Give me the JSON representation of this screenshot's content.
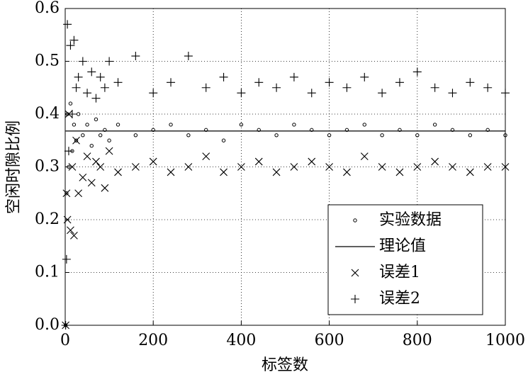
{
  "chart_data": {
    "type": "scatter",
    "x_label": "标签数",
    "y_label": "空闲时隙比例",
    "xlim": [
      0,
      1000
    ],
    "xticks": [
      0,
      200,
      400,
      600,
      800,
      1000
    ],
    "ylim": [
      0,
      0.6
    ],
    "yticks": [
      {
        "value": 0,
        "label": "0.0"
      },
      0.1,
      0.2,
      0.3,
      0.4,
      0.5,
      0.6
    ],
    "grid": true,
    "legend": "lower right",
    "series": [
      {
        "name": "实验数据",
        "marker": "circle",
        "color": "#000000",
        "x": [
          1,
          3,
          5,
          8,
          12,
          16,
          20,
          25,
          30,
          40,
          50,
          60,
          70,
          80,
          90,
          100,
          120,
          160,
          200,
          240,
          280,
          320,
          360,
          400,
          440,
          480,
          520,
          560,
          600,
          640,
          680,
          720,
          760,
          800,
          840,
          880,
          920,
          960,
          1000
        ],
        "values": [
          0,
          0.25,
          0.4,
          0.3,
          0.42,
          0.33,
          0.38,
          0.35,
          0.4,
          0.36,
          0.38,
          0.34,
          0.39,
          0.36,
          0.37,
          0.35,
          0.38,
          0.36,
          0.37,
          0.38,
          0.36,
          0.37,
          0.35,
          0.38,
          0.37,
          0.36,
          0.38,
          0.37,
          0.36,
          0.37,
          0.38,
          0.36,
          0.37,
          0.36,
          0.38,
          0.37,
          0.36,
          0.37,
          0.36
        ]
      },
      {
        "name": "理论值",
        "marker": "line",
        "color": "#000000",
        "x": [
          1,
          1000
        ],
        "values": [
          0.368,
          0.368
        ]
      },
      {
        "name": "误差1",
        "marker": "x",
        "color": "#000000",
        "x": [
          1,
          3,
          5,
          8,
          12,
          16,
          20,
          25,
          30,
          40,
          50,
          60,
          70,
          80,
          90,
          100,
          120,
          160,
          200,
          240,
          280,
          320,
          360,
          400,
          440,
          480,
          520,
          560,
          600,
          640,
          680,
          720,
          760,
          800,
          840,
          880,
          920,
          960,
          1000
        ],
        "values": [
          0,
          0.25,
          0.2,
          0.4,
          0.18,
          0.3,
          0.17,
          0.35,
          0.25,
          0.28,
          0.32,
          0.27,
          0.31,
          0.3,
          0.26,
          0.33,
          0.29,
          0.3,
          0.31,
          0.29,
          0.3,
          0.32,
          0.29,
          0.3,
          0.31,
          0.29,
          0.3,
          0.31,
          0.3,
          0.29,
          0.32,
          0.3,
          0.29,
          0.3,
          0.31,
          0.3,
          0.29,
          0.3,
          0.3
        ]
      },
      {
        "name": "误差2",
        "marker": "plus",
        "color": "#000000",
        "x": [
          1,
          3,
          5,
          8,
          12,
          16,
          20,
          25,
          30,
          40,
          50,
          60,
          70,
          80,
          90,
          100,
          120,
          160,
          200,
          240,
          280,
          320,
          360,
          400,
          440,
          480,
          520,
          560,
          600,
          640,
          680,
          720,
          760,
          800,
          840,
          880,
          920,
          960,
          1000
        ],
        "values": [
          0,
          0.125,
          0.57,
          0.33,
          0.53,
          0.4,
          0.54,
          0.45,
          0.47,
          0.5,
          0.44,
          0.48,
          0.43,
          0.47,
          0.45,
          0.5,
          0.46,
          0.51,
          0.44,
          0.46,
          0.51,
          0.45,
          0.47,
          0.44,
          0.46,
          0.45,
          0.47,
          0.44,
          0.46,
          0.45,
          0.47,
          0.44,
          0.46,
          0.48,
          0.45,
          0.44,
          0.46,
          0.45,
          0.44
        ]
      }
    ]
  }
}
